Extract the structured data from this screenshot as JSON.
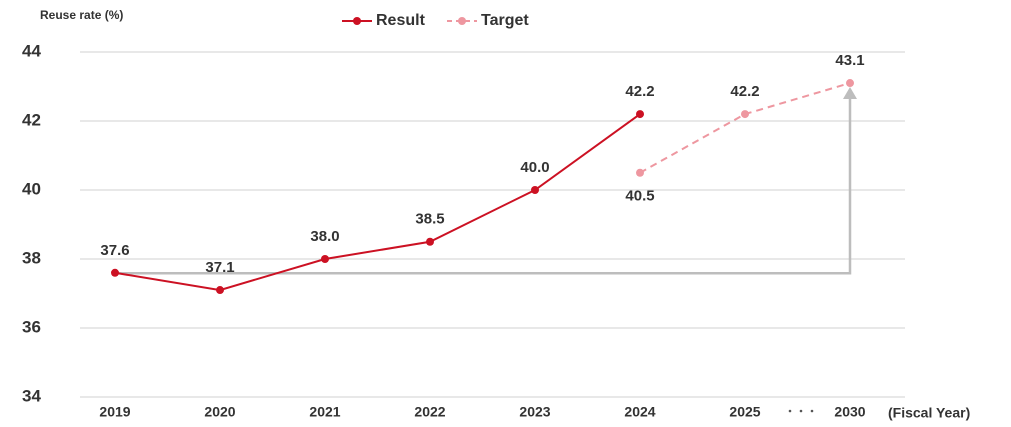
{
  "chart_data": {
    "type": "line",
    "y_label": "Reuse rate (%)",
    "x_label": "(Fiscal Year)",
    "categories": [
      "2019",
      "2020",
      "2021",
      "2022",
      "2023",
      "2024",
      "2025",
      "2030"
    ],
    "series": [
      {
        "name": "Result",
        "color": "#cc1123",
        "dashed": false,
        "values": [
          37.6,
          37.1,
          38.0,
          38.5,
          40.0,
          42.2,
          null,
          null
        ],
        "value_labels": [
          "37.6",
          "37.1",
          "38.0",
          "38.5",
          "40.0",
          "42.2",
          null,
          null
        ]
      },
      {
        "name": "Target",
        "color": "#ee97a0",
        "dashed": true,
        "values": [
          null,
          null,
          null,
          null,
          null,
          40.5,
          42.2,
          43.1
        ],
        "value_labels": [
          null,
          null,
          null,
          null,
          null,
          "40.5",
          "42.2",
          "43.1"
        ]
      }
    ],
    "ylim": [
      34,
      44
    ],
    "yticks": [
      34,
      36,
      38,
      40,
      42,
      44
    ],
    "grid": true
  }
}
